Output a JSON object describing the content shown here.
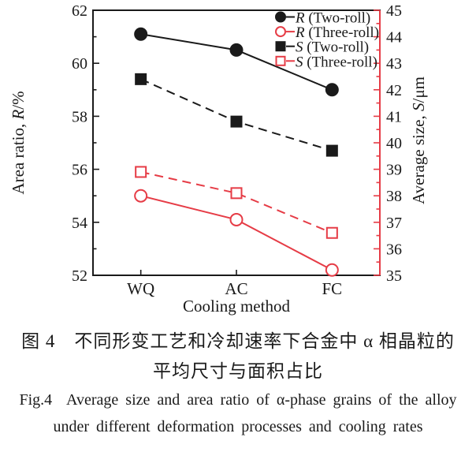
{
  "colors": {
    "black": "#1a1a1a",
    "red": "#e63c46"
  },
  "chart_data": {
    "type": "line",
    "categories": [
      "WQ",
      "AC",
      "FC"
    ],
    "xlabel": "Cooling method",
    "left_axis": {
      "title_pre": "Area ratio, ",
      "title_it": "R",
      "title_post": "/%",
      "min": 52,
      "max": 62,
      "major_step": 2,
      "minor_step": 1,
      "color": "#1a1a1a"
    },
    "right_axis": {
      "title_pre": "Average size, ",
      "title_it": "S",
      "title_post": "/μm",
      "min": 35,
      "max": 45,
      "major_step": 1,
      "minor_step": 0.5,
      "color": "#e63c46"
    },
    "grid": false,
    "legend_position": "top-right-inside",
    "series": [
      {
        "name": "R (Two-roll)",
        "name_it": "R",
        "name_rest": " (Two-roll)",
        "axis": "left",
        "values": [
          61.1,
          60.5,
          59.0
        ],
        "color_key": "black",
        "marker": "circle",
        "fill": "filled",
        "line": "solid"
      },
      {
        "name": "R (Three-roll)",
        "name_it": "R",
        "name_rest": " (Three-roll)",
        "axis": "left",
        "values": [
          55.0,
          54.1,
          52.2
        ],
        "color_key": "red",
        "marker": "circle",
        "fill": "open",
        "line": "solid"
      },
      {
        "name": "S (Two-roll)",
        "name_it": "S",
        "name_rest": " (Two-roll)",
        "axis": "right",
        "values": [
          42.4,
          40.8,
          39.7
        ],
        "color_key": "black",
        "marker": "square",
        "fill": "filled",
        "line": "dashed"
      },
      {
        "name": "S (Three-roll)",
        "name_it": "S",
        "name_rest": " (Three-roll)",
        "axis": "right",
        "values": [
          38.9,
          38.1,
          36.6
        ],
        "color_key": "red",
        "marker": "square",
        "fill": "open",
        "line": "dashed"
      }
    ]
  },
  "caption": {
    "zh_line1": "图 4　不同形变工艺和冷却速率下合金中 α 相晶粒的",
    "zh_line2": "平均尺寸与面积占比",
    "en_line1": "Fig.4  Average size and area ratio of α-phase grains of the alloy",
    "en_line2": "under different deformation processes and cooling rates"
  }
}
